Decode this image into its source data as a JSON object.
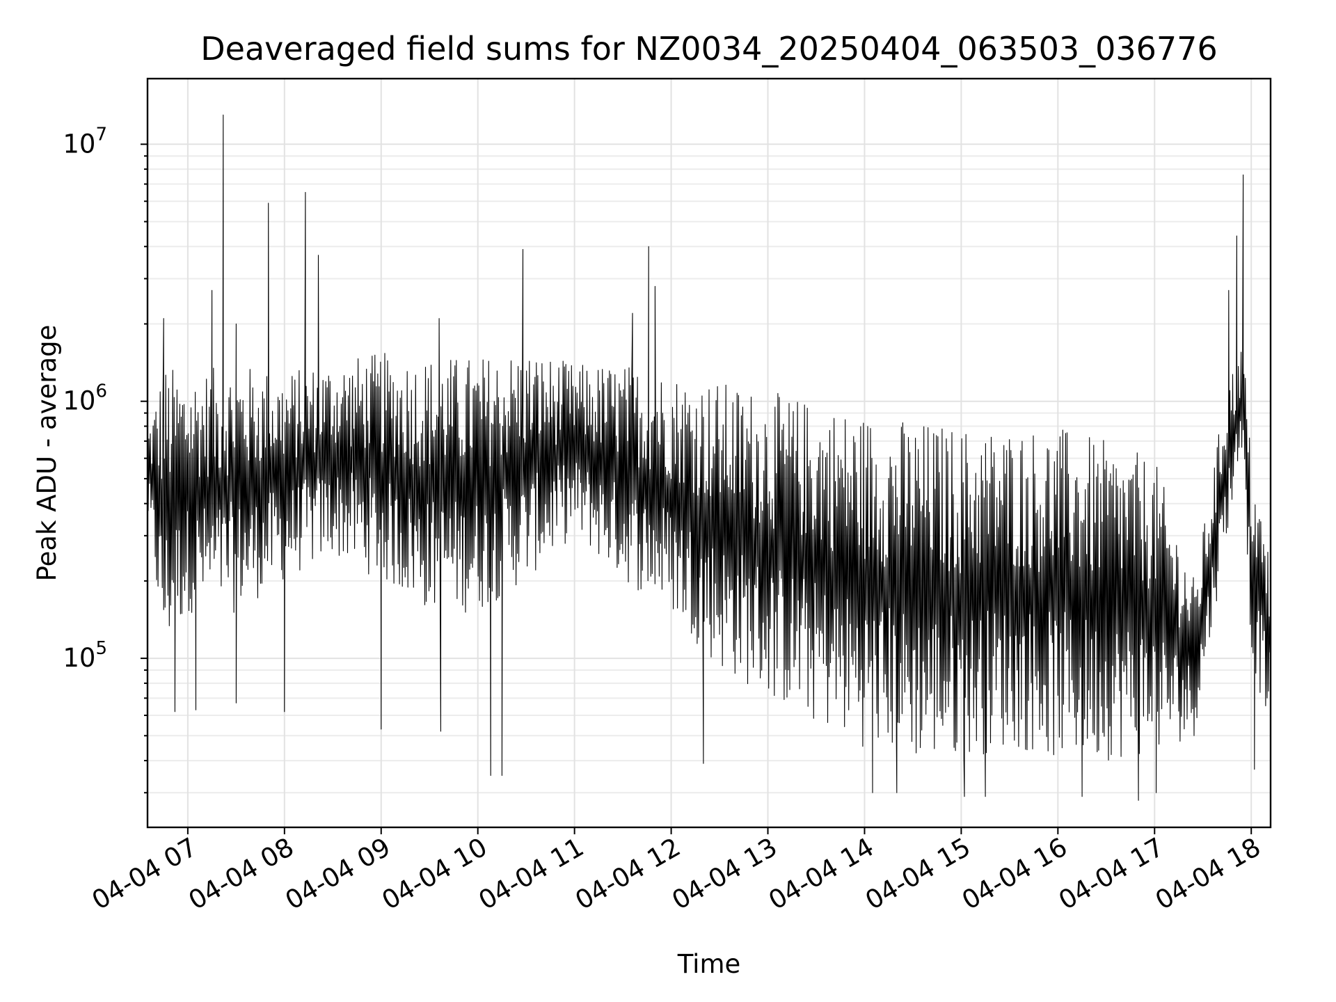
{
  "chart_data": {
    "type": "line",
    "title": "Deaveraged field sums for NZ0034_20250404_063503_036776",
    "xlabel": "Time",
    "ylabel": "Peak ADU - average",
    "yscale": "log",
    "grid": "on (major and minor)",
    "xlim": [
      "2025-04-04 06:35",
      "2025-04-04 18:12"
    ],
    "ylim": [
      22000,
      18000000
    ],
    "x_tick_labels": [
      "04-04 07",
      "04-04 08",
      "04-04 09",
      "04-04 10",
      "04-04 11",
      "04-04 12",
      "04-04 13",
      "04-04 14",
      "04-04 15",
      "04-04 16",
      "04-04 17",
      "04-04 18"
    ],
    "y_tick_labels": [
      {
        "base": "10",
        "exp": "5",
        "value": 100000
      },
      {
        "base": "10",
        "exp": "6",
        "value": 1000000
      },
      {
        "base": "10",
        "exp": "7",
        "value": 10000000
      }
    ],
    "series": [
      {
        "color": "#000000",
        "envelope": [
          {
            "x": "2025-04-04 06:35",
            "low": 350000,
            "high": 800000
          },
          {
            "x": "2025-04-04 06:45",
            "low": 100000,
            "high": 1400000
          },
          {
            "x": "2025-04-04 07:00",
            "low": 150000,
            "high": 1300000
          },
          {
            "x": "2025-04-04 07:30",
            "low": 150000,
            "high": 1400000
          },
          {
            "x": "2025-04-04 08:00",
            "low": 200000,
            "high": 1300000
          },
          {
            "x": "2025-04-04 08:30",
            "low": 250000,
            "high": 1450000
          },
          {
            "x": "2025-04-04 09:00",
            "low": 200000,
            "high": 1550000
          },
          {
            "x": "2025-04-04 09:30",
            "low": 150000,
            "high": 1500000
          },
          {
            "x": "2025-04-04 10:00",
            "low": 150000,
            "high": 1500000
          },
          {
            "x": "2025-04-04 10:30",
            "low": 200000,
            "high": 1600000
          },
          {
            "x": "2025-04-04 11:00",
            "low": 300000,
            "high": 1400000
          },
          {
            "x": "2025-04-04 11:30",
            "low": 200000,
            "high": 1400000
          },
          {
            "x": "2025-04-04 12:00",
            "low": 150000,
            "high": 1300000
          },
          {
            "x": "2025-04-04 12:30",
            "low": 90000,
            "high": 1200000
          },
          {
            "x": "2025-04-04 13:00",
            "low": 70000,
            "high": 1100000
          },
          {
            "x": "2025-04-04 13:30",
            "low": 55000,
            "high": 1000000
          },
          {
            "x": "2025-04-04 14:00",
            "low": 45000,
            "high": 900000
          },
          {
            "x": "2025-04-04 14:30",
            "low": 40000,
            "high": 850000
          },
          {
            "x": "2025-04-04 15:00",
            "low": 40000,
            "high": 800000
          },
          {
            "x": "2025-04-04 15:30",
            "low": 45000,
            "high": 800000
          },
          {
            "x": "2025-04-04 16:00",
            "low": 40000,
            "high": 800000
          },
          {
            "x": "2025-04-04 16:30",
            "low": 40000,
            "high": 700000
          },
          {
            "x": "2025-04-04 17:00",
            "low": 42000,
            "high": 600000
          },
          {
            "x": "2025-04-04 17:25",
            "low": 50000,
            "high": 200000
          },
          {
            "x": "2025-04-04 17:45",
            "low": 300000,
            "high": 1200000
          },
          {
            "x": "2025-04-04 17:55",
            "low": 700000,
            "high": 1700000
          },
          {
            "x": "2025-04-04 18:00",
            "low": 100000,
            "high": 600000
          },
          {
            "x": "2025-04-04 18:12",
            "low": 50000,
            "high": 250000
          }
        ],
        "spikes": [
          {
            "x": "2025-04-04 06:45",
            "y": 2100000
          },
          {
            "x": "2025-04-04 07:15",
            "y": 2700000
          },
          {
            "x": "2025-04-04 07:22",
            "y": 13000000
          },
          {
            "x": "2025-04-04 07:30",
            "y": 2000000
          },
          {
            "x": "2025-04-04 07:50",
            "y": 5900000
          },
          {
            "x": "2025-04-04 08:13",
            "y": 6500000
          },
          {
            "x": "2025-04-04 08:21",
            "y": 3700000
          },
          {
            "x": "2025-04-04 09:36",
            "y": 2100000
          },
          {
            "x": "2025-04-04 10:28",
            "y": 3900000
          },
          {
            "x": "2025-04-04 11:36",
            "y": 2200000
          },
          {
            "x": "2025-04-04 11:46",
            "y": 4000000
          },
          {
            "x": "2025-04-04 11:50",
            "y": 2800000
          },
          {
            "x": "2025-04-04 17:46",
            "y": 2700000
          },
          {
            "x": "2025-04-04 17:51",
            "y": 4400000
          },
          {
            "x": "2025-04-04 17:55",
            "y": 7600000
          }
        ],
        "dips": [
          {
            "x": "2025-04-04 06:52",
            "y": 62000
          },
          {
            "x": "2025-04-04 07:05",
            "y": 63000
          },
          {
            "x": "2025-04-04 07:30",
            "y": 67000
          },
          {
            "x": "2025-04-04 08:00",
            "y": 62000
          },
          {
            "x": "2025-04-04 09:00",
            "y": 53000
          },
          {
            "x": "2025-04-04 09:37",
            "y": 52000
          },
          {
            "x": "2025-04-04 10:08",
            "y": 35000
          },
          {
            "x": "2025-04-04 10:15",
            "y": 35000
          },
          {
            "x": "2025-04-04 12:20",
            "y": 39000
          },
          {
            "x": "2025-04-04 14:05",
            "y": 30000
          },
          {
            "x": "2025-04-04 14:20",
            "y": 30000
          },
          {
            "x": "2025-04-04 15:02",
            "y": 29000
          },
          {
            "x": "2025-04-04 15:15",
            "y": 29000
          },
          {
            "x": "2025-04-04 16:15",
            "y": 29000
          },
          {
            "x": "2025-04-04 16:50",
            "y": 28000
          },
          {
            "x": "2025-04-04 17:01",
            "y": 30000
          },
          {
            "x": "2025-04-04 18:02",
            "y": 37000
          }
        ]
      }
    ]
  }
}
